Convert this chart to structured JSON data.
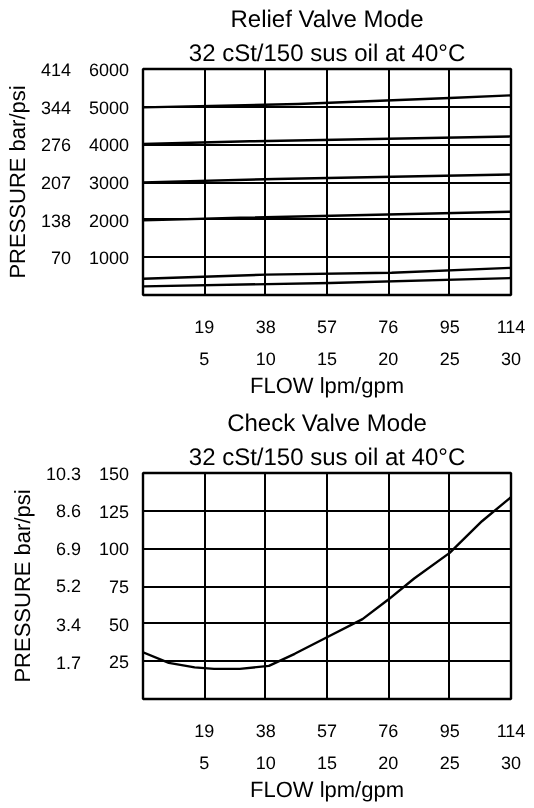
{
  "chart_data": [
    {
      "type": "line",
      "title": "Relief Valve Mode",
      "subtitle": "32 cSt/150 sus oil at 40°C",
      "xlabel": "FLOW lpm/gpm",
      "y2label": "PRESSURE bar/psi",
      "grid": true,
      "xlim": [
        0,
        114
      ],
      "ylim": [
        0,
        6000
      ],
      "xticks": [
        19,
        38,
        57,
        76,
        95,
        114
      ],
      "x2lim": [
        0,
        30
      ],
      "x2ticks": [
        5,
        10,
        15,
        20,
        25,
        30
      ],
      "yticks": [
        1000,
        2000,
        3000,
        4000,
        5000,
        6000
      ],
      "y2lim": [
        0,
        414
      ],
      "y2ticks": [
        70,
        138,
        207,
        276,
        344,
        414
      ],
      "series": [
        {
          "color": "#000000",
          "x": [
            0,
            48,
            95,
            114
          ],
          "values": [
            4980,
            5070,
            5230,
            5300
          ]
        },
        {
          "color": "#000000",
          "x": [
            0,
            33,
            114
          ],
          "values": [
            4010,
            4080,
            4210
          ]
        },
        {
          "color": "#000000",
          "x": [
            0,
            41,
            114
          ],
          "values": [
            2990,
            3080,
            3200
          ]
        },
        {
          "color": "#000000",
          "x": [
            0,
            30,
            114
          ],
          "values": [
            1980,
            2050,
            2210
          ]
        },
        {
          "color": "#000000",
          "x": [
            0,
            38,
            77,
            114
          ],
          "values": [
            430,
            540,
            590,
            720
          ]
        },
        {
          "color": "#000000",
          "x": [
            0,
            58,
            114
          ],
          "values": [
            230,
            320,
            450
          ]
        }
      ]
    },
    {
      "type": "line",
      "title": "Check Valve Mode",
      "subtitle": "32 cSt/150 sus oil at 40°C",
      "xlabel": "FLOW lpm/gpm",
      "y2label": "PRESSURE bar/psi",
      "grid": true,
      "xlim": [
        0,
        114
      ],
      "ylim": [
        0,
        150
      ],
      "xticks": [
        19,
        38,
        57,
        76,
        95,
        114
      ],
      "x2lim": [
        0,
        30
      ],
      "x2ticks": [
        5,
        10,
        15,
        20,
        25,
        30
      ],
      "yticks": [
        25,
        50,
        75,
        100,
        125,
        150
      ],
      "y2lim": [
        0,
        10.3
      ],
      "y2ticks": [
        1.7,
        3.4,
        5.2,
        6.9,
        8.6,
        10.3
      ],
      "series": [
        {
          "color": "#000000",
          "x": [
            0,
            8,
            16,
            22,
            30,
            39,
            47,
            57,
            68,
            76,
            84,
            95,
            105,
            114
          ],
          "values": [
            31,
            24,
            21,
            20,
            20,
            22,
            30,
            41,
            53,
            66,
            80,
            97,
            118,
            134
          ]
        }
      ]
    }
  ]
}
